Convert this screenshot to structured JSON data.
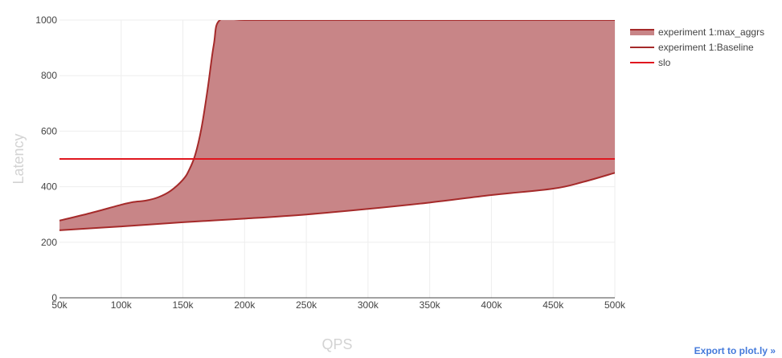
{
  "chart_data": {
    "type": "area",
    "title": "",
    "xlabel": "QPS",
    "ylabel": "Latency",
    "xlim": [
      50000,
      500000
    ],
    "ylim": [
      0,
      1000
    ],
    "x_ticks": [
      50000,
      100000,
      150000,
      200000,
      250000,
      300000,
      350000,
      400000,
      450000,
      500000
    ],
    "x_tick_labels": [
      "50k",
      "100k",
      "150k",
      "200k",
      "250k",
      "300k",
      "350k",
      "400k",
      "450k",
      "500k"
    ],
    "y_ticks": [
      0,
      200,
      400,
      600,
      800,
      1000
    ],
    "y_tick_labels": [
      "0",
      "200",
      "400",
      "600",
      "800",
      "1000"
    ],
    "grid": true,
    "legend_position": "top-right",
    "series": [
      {
        "name": "experiment 1:max_aggrs",
        "kind": "filled-area",
        "color": "#a52a2a",
        "fill_color": "#c88587",
        "x": [
          50000,
          75000,
          100000,
          110000,
          120000,
          130000,
          140000,
          150000,
          155000,
          160000,
          165000,
          170000,
          175000,
          180000,
          200000,
          250000,
          300000,
          350000,
          400000,
          450000,
          500000
        ],
        "y": [
          278,
          305,
          335,
          345,
          350,
          362,
          385,
          425,
          460,
          515,
          610,
          750,
          910,
          1000,
          1000,
          1000,
          1000,
          1000,
          1000,
          1000,
          1000
        ]
      },
      {
        "name": "experiment 1:Baseline",
        "kind": "line",
        "color": "#a52a2a",
        "x": [
          50000,
          100000,
          150000,
          200000,
          250000,
          300000,
          350000,
          400000,
          450000,
          475000,
          500000
        ],
        "y": [
          243,
          257,
          272,
          285,
          300,
          320,
          343,
          370,
          393,
          418,
          450
        ]
      },
      {
        "name": "slo",
        "kind": "line",
        "color": "#e0171f",
        "x": [
          50000,
          500000
        ],
        "y": [
          500,
          500
        ]
      }
    ]
  },
  "footer": {
    "export_label": "Export to plot.ly »"
  }
}
